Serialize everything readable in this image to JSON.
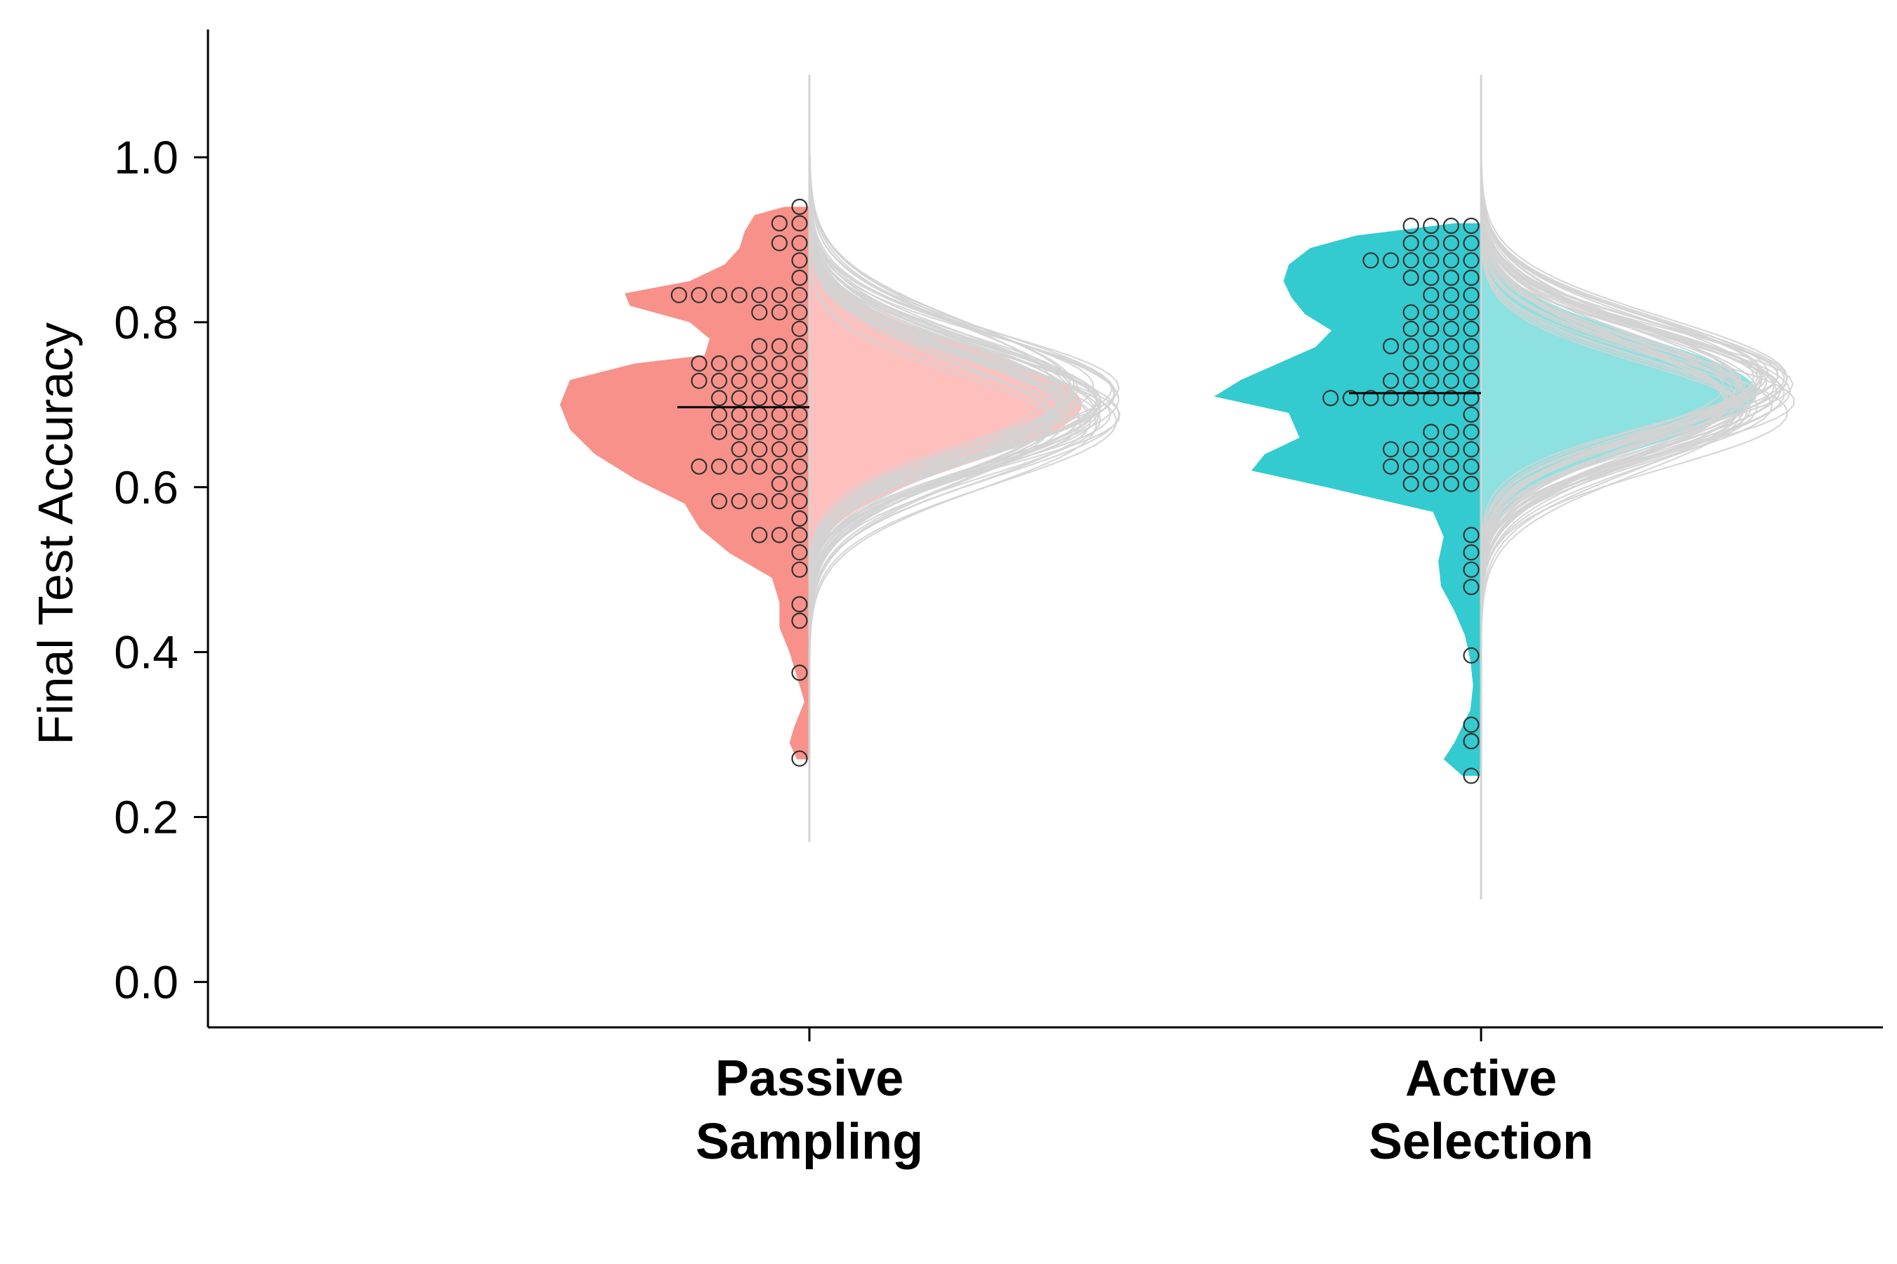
{
  "chart_data": {
    "type": "raincloud",
    "title": "",
    "xlabel": "",
    "ylabel": "Final Test Accuracy",
    "ylim": [
      -0.055,
      1.155
    ],
    "yticks": [
      "0.0",
      "0.2",
      "0.4",
      "0.6",
      "0.8",
      "1.0"
    ],
    "grid": false,
    "legend": "none",
    "categories": [
      {
        "line1": "Passive",
        "line2": "Sampling"
      },
      {
        "line1": "Active",
        "line2": "Selection"
      }
    ],
    "groups": [
      {
        "fill_observed": "#F8918A",
        "fill_posterior": "#FFBFBC",
        "mean": 0.697,
        "observed_density": [
          [
            0.27,
            0.05
          ],
          [
            0.29,
            0.08
          ],
          [
            0.31,
            0.06
          ],
          [
            0.34,
            0.02
          ],
          [
            0.37,
            0.05
          ],
          [
            0.4,
            0.08
          ],
          [
            0.43,
            0.12
          ],
          [
            0.46,
            0.12
          ],
          [
            0.49,
            0.15
          ],
          [
            0.52,
            0.32
          ],
          [
            0.55,
            0.44
          ],
          [
            0.58,
            0.5
          ],
          [
            0.61,
            0.7
          ],
          [
            0.64,
            0.86
          ],
          [
            0.67,
            0.96
          ],
          [
            0.7,
            1.0
          ],
          [
            0.73,
            0.96
          ],
          [
            0.75,
            0.7
          ],
          [
            0.76,
            0.42
          ],
          [
            0.78,
            0.4
          ],
          [
            0.8,
            0.48
          ],
          [
            0.82,
            0.72
          ],
          [
            0.835,
            0.74
          ],
          [
            0.85,
            0.48
          ],
          [
            0.87,
            0.34
          ],
          [
            0.89,
            0.28
          ],
          [
            0.91,
            0.26
          ],
          [
            0.93,
            0.22
          ],
          [
            0.94,
            0.1
          ]
        ],
        "points": [
          {
            "y": 0.94,
            "n": 1
          },
          {
            "y": 0.92,
            "n": 2
          },
          {
            "y": 0.896,
            "n": 2
          },
          {
            "y": 0.875,
            "n": 1
          },
          {
            "y": 0.854,
            "n": 1
          },
          {
            "y": 0.833,
            "n": 7
          },
          {
            "y": 0.812,
            "n": 3
          },
          {
            "y": 0.792,
            "n": 1
          },
          {
            "y": 0.771,
            "n": 3
          },
          {
            "y": 0.75,
            "n": 6
          },
          {
            "y": 0.729,
            "n": 6
          },
          {
            "y": 0.708,
            "n": 5
          },
          {
            "y": 0.688,
            "n": 5
          },
          {
            "y": 0.667,
            "n": 5
          },
          {
            "y": 0.646,
            "n": 4
          },
          {
            "y": 0.625,
            "n": 6
          },
          {
            "y": 0.604,
            "n": 2
          },
          {
            "y": 0.583,
            "n": 5
          },
          {
            "y": 0.562,
            "n": 1
          },
          {
            "y": 0.542,
            "n": 3
          },
          {
            "y": 0.521,
            "n": 1
          },
          {
            "y": 0.5,
            "n": 1
          },
          {
            "y": 0.458,
            "n": 1
          },
          {
            "y": 0.438,
            "n": 1
          },
          {
            "y": 0.375,
            "n": 1
          },
          {
            "y": 0.271,
            "n": 1
          }
        ],
        "posterior": {
          "mean": 0.7,
          "sd": 0.068,
          "min": 0.17,
          "max": 1.1
        }
      },
      {
        "fill_observed": "#33CBCF",
        "fill_posterior": "#8DE2E1",
        "mean": 0.714,
        "observed_density": [
          [
            0.25,
            0.07
          ],
          [
            0.27,
            0.14
          ],
          [
            0.29,
            0.1
          ],
          [
            0.31,
            0.07
          ],
          [
            0.33,
            0.04
          ],
          [
            0.36,
            0.03
          ],
          [
            0.39,
            0.04
          ],
          [
            0.42,
            0.06
          ],
          [
            0.45,
            0.1
          ],
          [
            0.48,
            0.15
          ],
          [
            0.51,
            0.16
          ],
          [
            0.54,
            0.14
          ],
          [
            0.57,
            0.18
          ],
          [
            0.6,
            0.58
          ],
          [
            0.62,
            0.86
          ],
          [
            0.64,
            0.81
          ],
          [
            0.66,
            0.68
          ],
          [
            0.69,
            0.72
          ],
          [
            0.71,
            1.0
          ],
          [
            0.73,
            0.9
          ],
          [
            0.75,
            0.76
          ],
          [
            0.77,
            0.62
          ],
          [
            0.79,
            0.56
          ],
          [
            0.81,
            0.66
          ],
          [
            0.83,
            0.71
          ],
          [
            0.85,
            0.74
          ],
          [
            0.87,
            0.72
          ],
          [
            0.89,
            0.64
          ],
          [
            0.905,
            0.47
          ],
          [
            0.92,
            0.1
          ]
        ],
        "points": [
          {
            "y": 0.917,
            "n": 4
          },
          {
            "y": 0.896,
            "n": 4
          },
          {
            "y": 0.875,
            "n": 6
          },
          {
            "y": 0.854,
            "n": 4
          },
          {
            "y": 0.833,
            "n": 3
          },
          {
            "y": 0.812,
            "n": 4
          },
          {
            "y": 0.792,
            "n": 4
          },
          {
            "y": 0.771,
            "n": 5
          },
          {
            "y": 0.75,
            "n": 4
          },
          {
            "y": 0.729,
            "n": 5
          },
          {
            "y": 0.708,
            "n": 8
          },
          {
            "y": 0.688,
            "n": 1
          },
          {
            "y": 0.667,
            "n": 3
          },
          {
            "y": 0.646,
            "n": 5
          },
          {
            "y": 0.625,
            "n": 5
          },
          {
            "y": 0.604,
            "n": 4
          },
          {
            "y": 0.542,
            "n": 1
          },
          {
            "y": 0.521,
            "n": 1
          },
          {
            "y": 0.5,
            "n": 1
          },
          {
            "y": 0.479,
            "n": 1
          },
          {
            "y": 0.396,
            "n": 1
          },
          {
            "y": 0.312,
            "n": 1
          },
          {
            "y": 0.292,
            "n": 1
          },
          {
            "y": 0.25,
            "n": 1
          }
        ],
        "posterior": {
          "mean": 0.715,
          "sd": 0.065,
          "min": 0.1,
          "max": 1.1
        }
      }
    ],
    "posterior_curve_color": "#D3D3D3"
  }
}
